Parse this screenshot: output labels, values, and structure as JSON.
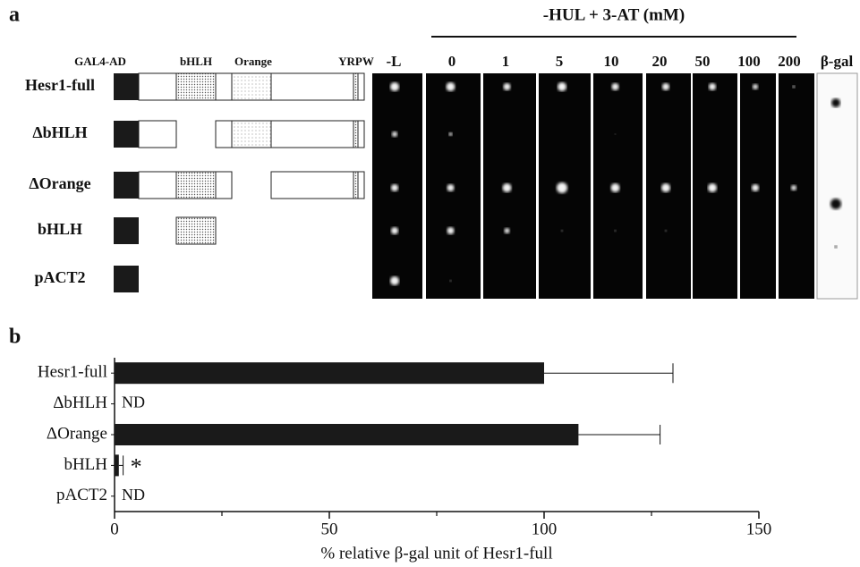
{
  "panel_a": {
    "label": "a",
    "domains": [
      "GAL4-AD",
      "bHLH",
      "Orange",
      "YRPW"
    ],
    "constructs": [
      "Hesr1-full",
      "ΔbHLH",
      "ΔOrange",
      "bHLH",
      "pACT2"
    ],
    "group_title": "-HUL + 3-AT (mM)",
    "columns": [
      "-L",
      "0",
      "1",
      "5",
      "10",
      "20",
      "50",
      "100",
      "200",
      "β-gal"
    ]
  },
  "chart_data": {
    "type": "hbar",
    "panel_label": "b",
    "categories": [
      "Hesr1-full",
      "ΔbHLH",
      "ΔOrange",
      "bHLH",
      "pACT2"
    ],
    "values": [
      100,
      null,
      108,
      1,
      null
    ],
    "errors": [
      30,
      null,
      19,
      1,
      null
    ],
    "annotations": [
      null,
      "ND",
      null,
      "*",
      "ND"
    ],
    "color": "#1a1a1a",
    "xlim": [
      0,
      150
    ],
    "xticks": [
      0,
      50,
      100,
      150
    ],
    "xminorticks": [
      25,
      75,
      125
    ],
    "xlabel": "% relative β-gal unit of Hesr1-full"
  }
}
